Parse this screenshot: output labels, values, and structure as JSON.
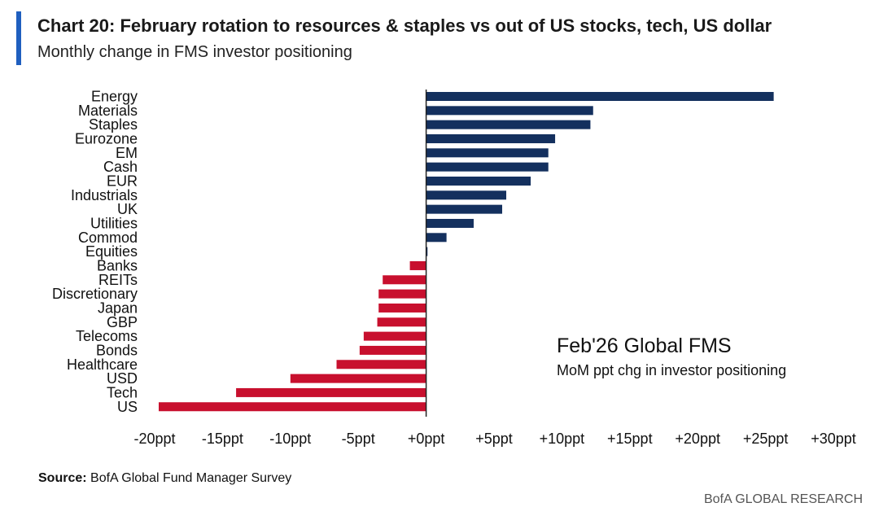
{
  "header": {
    "title": "Chart 20: February rotation to resources & staples vs out of US stocks, tech, US dollar",
    "subtitle": "Monthly change in FMS investor positioning"
  },
  "chart_data": {
    "type": "bar",
    "orientation": "horizontal",
    "categories": [
      "Energy",
      "Materials",
      "Staples",
      "Eurozone",
      "EM",
      "Cash",
      "EUR",
      "Industrials",
      "UK",
      "Utilities",
      "Commod",
      "Equities",
      "Banks",
      "REITs",
      "Discretionary",
      "Japan",
      "GBP",
      "Telecoms",
      "Bonds",
      "Healthcare",
      "USD",
      "Tech",
      "US"
    ],
    "values": [
      25.6,
      12.3,
      12.1,
      9.5,
      9.0,
      9.0,
      7.7,
      5.9,
      5.6,
      3.5,
      1.5,
      0.1,
      -1.2,
      -3.2,
      -3.5,
      -3.5,
      -3.6,
      -4.6,
      -4.9,
      -6.6,
      -10.0,
      -14.0,
      -19.7
    ],
    "xlim": [
      -20,
      30
    ],
    "xticks": [
      -20,
      -15,
      -10,
      -5,
      0,
      5,
      10,
      15,
      20,
      25,
      30
    ],
    "xtick_labels": [
      "-20ppt",
      "-15ppt",
      "-10ppt",
      "-5ppt",
      "+0ppt",
      "+5ppt",
      "+10ppt",
      "+15ppt",
      "+20ppt",
      "+25ppt",
      "+30ppt"
    ],
    "xlabel": "",
    "ylabel": "",
    "grid": false,
    "annotation": {
      "title": "Feb'26 Global FMS",
      "subtitle": "MoM ppt chg in investor positioning"
    },
    "colors": {
      "positive": "#14305e",
      "negative": "#c8102e",
      "axis": "#222222"
    }
  },
  "footer": {
    "source_label": "Source:",
    "source_text": "BofA Global Fund Manager Survey",
    "brand": "BofA GLOBAL RESEARCH"
  }
}
